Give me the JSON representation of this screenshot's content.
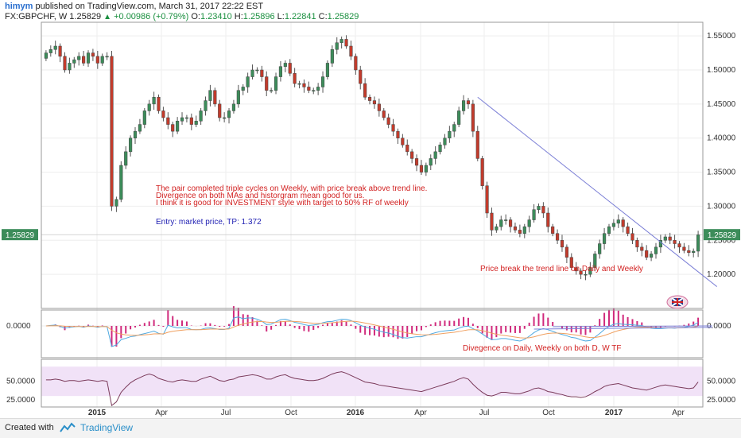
{
  "header": {
    "user": "himym",
    "published": "published on TradingView.com, March 31, 2017 22:22 EST",
    "symbol": "FX:GBPCHF, W",
    "price": "1.25829",
    "up_arrow": "▲",
    "change": "+0.00986 (+0.79%)",
    "o_label": "O:",
    "o": "1.23410",
    "h_label": "H:",
    "h": "1.25896",
    "l_label": "L:",
    "l": "1.22841",
    "c_label": "C:",
    "c": "1.25829"
  },
  "footer": {
    "created_with": "Created with",
    "brand": "TradingView",
    "logo_icon": "tradingview-logo-icon"
  },
  "colors": {
    "bull": "#3c8c5a",
    "bear": "#c23b2c",
    "trendline": "#7b7fd6",
    "annotation": "#d22222",
    "entry": "#2323b4",
    "histogram": "#d02a7c",
    "macd_line": "#4fa9e0",
    "signal_line": "#f0a060",
    "rsi_line": "#7a3a5a",
    "rsi_band": "#f1e2f7",
    "price_label": "#3c8c5a"
  },
  "chart_data": [
    {
      "type": "candlestick",
      "symbol": "FX:GBPCHF",
      "timeframe": "W",
      "x_ticks": [
        "2015",
        "Apr",
        "Jul",
        "Oct",
        "2016",
        "Apr",
        "Jul",
        "Oct",
        "2017",
        "Apr"
      ],
      "y_ticks": [
        "1.55000",
        "1.50000",
        "1.45000",
        "1.40000",
        "1.35000",
        "1.30000",
        "1.25000",
        "1.20000"
      ],
      "ylim": [
        1.15,
        1.57
      ],
      "last_price_label": "1.25829",
      "close_series": [
        1.525,
        1.53,
        1.535,
        1.52,
        1.5,
        1.51,
        1.515,
        1.52,
        1.51,
        1.525,
        1.52,
        1.51,
        1.52,
        1.52,
        1.3,
        1.31,
        1.36,
        1.38,
        1.4,
        1.41,
        1.42,
        1.44,
        1.45,
        1.46,
        1.44,
        1.43,
        1.42,
        1.41,
        1.425,
        1.43,
        1.43,
        1.42,
        1.425,
        1.44,
        1.455,
        1.47,
        1.45,
        1.43,
        1.43,
        1.44,
        1.45,
        1.47,
        1.475,
        1.49,
        1.5,
        1.5,
        1.49,
        1.47,
        1.47,
        1.49,
        1.505,
        1.51,
        1.495,
        1.48,
        1.48,
        1.475,
        1.47,
        1.47,
        1.475,
        1.49,
        1.51,
        1.53,
        1.54,
        1.545,
        1.535,
        1.52,
        1.5,
        1.48,
        1.46,
        1.455,
        1.45,
        1.44,
        1.43,
        1.42,
        1.41,
        1.4,
        1.39,
        1.38,
        1.37,
        1.36,
        1.35,
        1.36,
        1.37,
        1.38,
        1.39,
        1.4,
        1.41,
        1.42,
        1.44,
        1.455,
        1.45,
        1.41,
        1.37,
        1.33,
        1.29,
        1.265,
        1.27,
        1.28,
        1.28,
        1.27,
        1.265,
        1.26,
        1.27,
        1.28,
        1.295,
        1.3,
        1.29,
        1.27,
        1.26,
        1.25,
        1.24,
        1.225,
        1.21,
        1.205,
        1.2,
        1.2,
        1.21,
        1.23,
        1.245,
        1.26,
        1.27,
        1.275,
        1.28,
        1.27,
        1.26,
        1.25,
        1.24,
        1.235,
        1.225,
        1.23,
        1.24,
        1.25,
        1.255,
        1.25,
        1.245,
        1.24,
        1.235,
        1.232,
        1.234,
        1.258
      ],
      "annotations": [
        "The pair completed triple cycles on Weekly, with price break above trend line.",
        "Divergence on both MAs and historgram mean good for us.",
        "I think it is good for INVESTMENT style with target to 50% RF of weekly",
        "Entry: market price, TP: 1.372",
        "Price break the trend line on Daily and Weekly"
      ],
      "trendline": {
        "from": [
          92,
          1.46
        ],
        "to": [
          143,
          1.182
        ]
      }
    },
    {
      "type": "macd",
      "y_ticks": [
        "0.0000"
      ],
      "annotation": "Divegence on Daily, Weekly on both D, W TF"
    },
    {
      "type": "rsi",
      "y_ticks": [
        "50.0000",
        "25.0000"
      ],
      "band": [
        30,
        70
      ],
      "ylim": [
        15,
        80
      ],
      "values": [
        52,
        52,
        53,
        52,
        50,
        51,
        51,
        50,
        51,
        52,
        51,
        50,
        51,
        50,
        17,
        22,
        35,
        42,
        48,
        52,
        55,
        58,
        60,
        58,
        54,
        52,
        50,
        49,
        51,
        52,
        51,
        50,
        50,
        53,
        55,
        57,
        54,
        51,
        50,
        52,
        53,
        56,
        57,
        58,
        59,
        58,
        56,
        53,
        53,
        56,
        58,
        59,
        56,
        54,
        53,
        52,
        51,
        51,
        52,
        54,
        57,
        60,
        62,
        63,
        61,
        58,
        55,
        52,
        49,
        48,
        47,
        45,
        44,
        43,
        42,
        41,
        40,
        39,
        38,
        37,
        36,
        38,
        40,
        42,
        44,
        46,
        48,
        50,
        53,
        55,
        53,
        46,
        40,
        35,
        31,
        30,
        32,
        35,
        35,
        34,
        33,
        33,
        35,
        37,
        40,
        41,
        39,
        36,
        35,
        33,
        32,
        30,
        29,
        29,
        28,
        29,
        32,
        36,
        39,
        43,
        45,
        46,
        47,
        45,
        43,
        41,
        40,
        39,
        38,
        40,
        42,
        44,
        45,
        44,
        43,
        42,
        41,
        40,
        41,
        49
      ]
    }
  ]
}
